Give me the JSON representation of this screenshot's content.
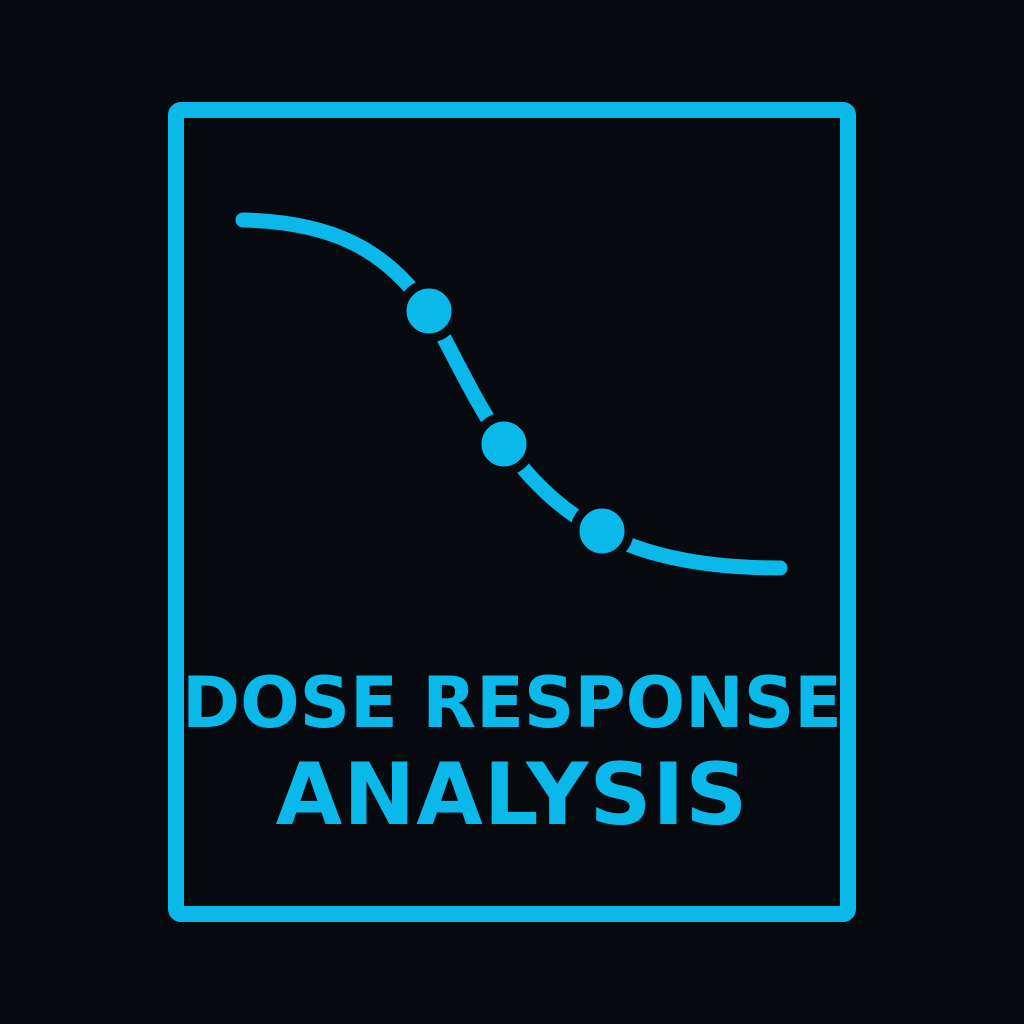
{
  "logo": {
    "accent_color": "#0bb8ea",
    "background_color": "#070b10",
    "title_line_1": "DOSE RESPONSE",
    "title_line_2": "ANALYSIS",
    "graphic": {
      "curve": "sigmoid-decreasing",
      "marker_count": 3
    }
  }
}
